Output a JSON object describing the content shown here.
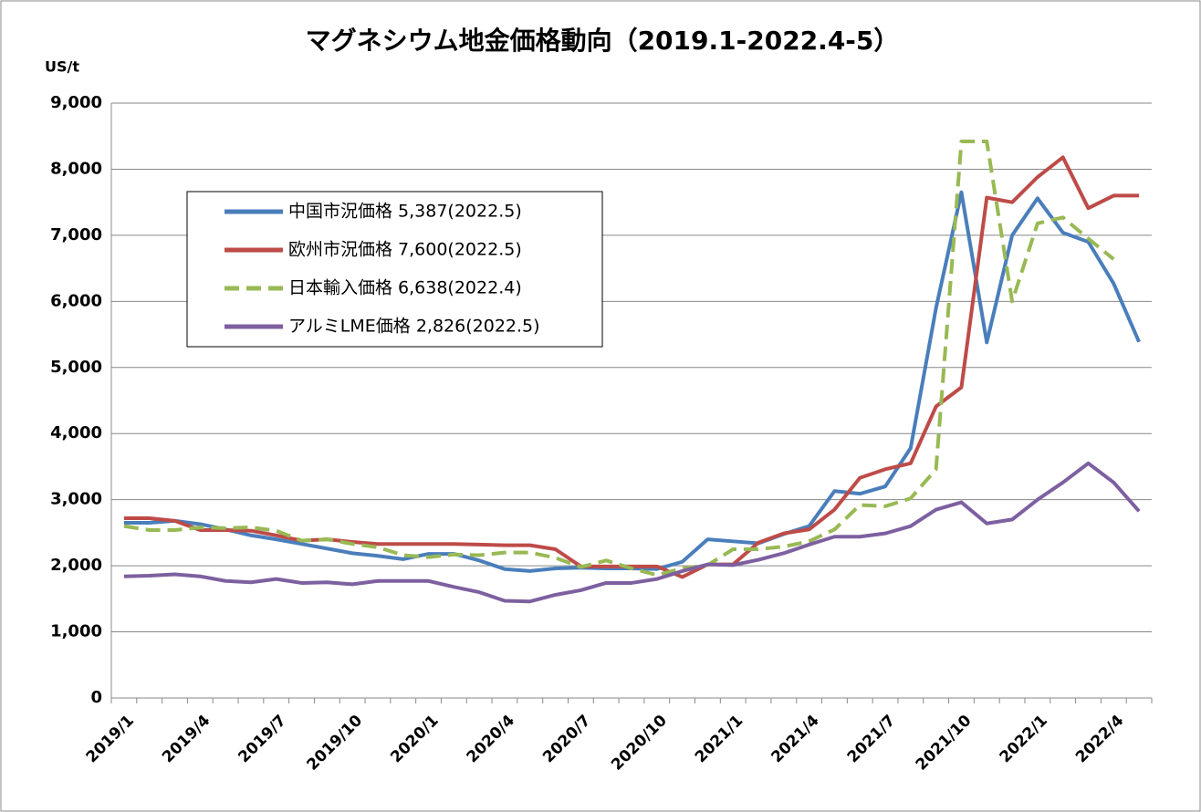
{
  "chart_data": {
    "type": "line",
    "title": "マグネシウム地金価格動向（2019.1-2022.4-5）",
    "y_unit": "US/t",
    "categories": [
      "2019/1",
      null,
      null,
      "2019/4",
      null,
      null,
      "2019/7",
      null,
      null,
      "2019/10",
      null,
      null,
      "2020/1",
      null,
      null,
      "2020/4",
      null,
      null,
      "2020/7",
      null,
      null,
      "2020/10",
      null,
      null,
      "2021/1",
      null,
      null,
      "2021/4",
      null,
      null,
      "2021/7",
      null,
      null,
      "2021/10",
      null,
      null,
      "2022/1",
      null,
      null,
      "2022/4",
      null
    ],
    "series": [
      {
        "name": "中国市況価格 5,387(2022.5)",
        "color": "#4a7ebb",
        "dash": false,
        "values": [
          2650,
          2650,
          2680,
          2630,
          2550,
          2460,
          2400,
          2330,
          2260,
          2190,
          2150,
          2100,
          2180,
          2180,
          2080,
          1950,
          1920,
          1960,
          1970,
          1960,
          1960,
          1950,
          2060,
          2400,
          2370,
          2340,
          2480,
          2600,
          3130,
          3090,
          3200,
          3780,
          5900,
          7650,
          5380,
          7000,
          7560,
          7040,
          6900,
          6270,
          5387
        ]
      },
      {
        "name": "欧州市況価格 7,600(2022.5)",
        "color": "#be4b48",
        "dash": false,
        "values": [
          2720,
          2720,
          2680,
          2540,
          2540,
          2530,
          2460,
          2380,
          2400,
          2360,
          2330,
          2330,
          2330,
          2330,
          2320,
          2310,
          2310,
          2250,
          1990,
          1990,
          1990,
          1990,
          1830,
          2020,
          2020,
          2350,
          2490,
          2550,
          2850,
          3330,
          3460,
          3550,
          4410,
          4700,
          7570,
          7500,
          7880,
          8180,
          7410,
          7600,
          7600
        ]
      },
      {
        "name": "日本輸入価格 6,638(2022.4)",
        "color": "#98b954",
        "dash": true,
        "values": [
          2600,
          2540,
          2540,
          2580,
          2570,
          2580,
          2530,
          2380,
          2400,
          2330,
          2280,
          2160,
          2130,
          2170,
          2160,
          2200,
          2200,
          2120,
          1980,
          2080,
          1960,
          1860,
          1960,
          2010,
          2250,
          2250,
          2290,
          2370,
          2550,
          2920,
          2900,
          3020,
          3460,
          8420,
          8420,
          6000,
          7180,
          7270,
          6950,
          6638,
          null
        ]
      },
      {
        "name": "アルミLME価格 2,826(2022.5)",
        "color": "#7d60a0",
        "dash": false,
        "values": [
          1840,
          1850,
          1870,
          1840,
          1770,
          1750,
          1800,
          1740,
          1750,
          1720,
          1770,
          1770,
          1770,
          1680,
          1600,
          1470,
          1460,
          1560,
          1630,
          1740,
          1740,
          1800,
          1920,
          2020,
          2010,
          2090,
          2190,
          2320,
          2440,
          2440,
          2490,
          2600,
          2850,
          2960,
          2640,
          2700,
          3000,
          3260,
          3550,
          3260,
          2826
        ]
      }
    ],
    "ylim": [
      0,
      9000
    ],
    "yticks": [
      0,
      {
        "value": 1000,
        "label": "1,000"
      },
      {
        "value": 2000,
        "label": "2,000"
      },
      {
        "value": 3000,
        "label": "3,000"
      },
      {
        "value": 4000,
        "label": "4,000"
      },
      {
        "value": 5000,
        "label": "5,000"
      },
      {
        "value": 6000,
        "label": "6,000"
      },
      {
        "value": 7000,
        "label": "7,000"
      },
      {
        "value": 8000,
        "label": "8,000"
      },
      {
        "value": 9000,
        "label": "9,000"
      }
    ],
    "grid": true
  }
}
